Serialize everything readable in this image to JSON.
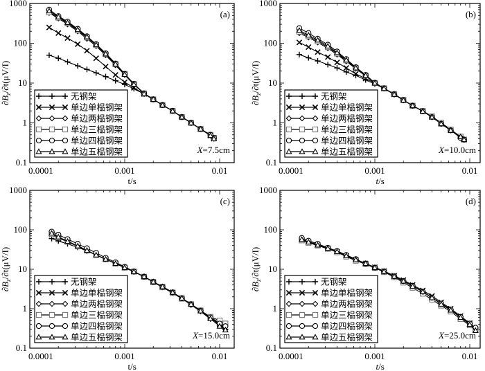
{
  "chart_data": {
    "type": "line",
    "scale": {
      "x": "log",
      "y": "log"
    },
    "xlabel": "t/s",
    "ylabel": "∂Bz/∂t(μV/I)",
    "ylabel_parts": {
      "pre": "∂B",
      "sub": "z",
      "post": "/∂t(μV/I)"
    },
    "xlabel_parts": {
      "var": "t",
      "unit": "/s"
    },
    "xticks": [
      "0.0001",
      "0.001",
      "0.01"
    ],
    "xtick_values": [
      0.0001,
      0.001,
      0.01
    ],
    "yticks": [
      "0.1",
      "1",
      "10",
      "100",
      "1000"
    ],
    "ytick_values": [
      0.1,
      1,
      10,
      100,
      1000
    ],
    "ylim": [
      0.1,
      1000
    ],
    "legend": {
      "placement": "bottom-left",
      "entries": [
        "无钢架",
        "单边单榀钢架",
        "单边两榀钢架",
        "单边三榀钢架",
        "单边四榀钢架",
        "单边五榀钢架"
      ],
      "markers": [
        "plus",
        "cross",
        "diamond",
        "square",
        "circle",
        "triangle"
      ]
    },
    "panels": [
      {
        "label": "(a)",
        "annotation": {
          "var": "X",
          "value": "=7.5cm"
        },
        "xlim": [
          0.0001,
          0.0142
        ],
        "t": [
          0.00016,
          0.0002,
          0.00025,
          0.00032,
          0.0004,
          0.0005,
          0.00063,
          0.0008,
          0.001,
          0.00125,
          0.0016,
          0.002,
          0.0025,
          0.0032,
          0.004,
          0.005,
          0.0063,
          0.008,
          0.0087
        ],
        "series": [
          {
            "name": "无钢架",
            "values": [
              50,
              42,
              34,
              27,
              22,
              18,
              14.5,
              11.5,
              9.2,
              7.2,
              5.3,
              3.9,
              2.8,
              2.0,
              1.4,
              1.0,
              0.7,
              0.48,
              0.4
            ]
          },
          {
            "name": "单边单榀钢架",
            "values": [
              250,
              180,
              135,
              95,
              65,
              42,
              26,
              16,
              10.5,
              7.6,
              5.3,
              3.9,
              2.8,
              2.0,
              1.4,
              1.0,
              0.7,
              0.48,
              0.4
            ]
          },
          {
            "name": "单边两榀钢架",
            "values": [
              580,
              420,
              300,
              200,
              130,
              85,
              50,
              28,
              16,
              9.2,
              5.4,
              3.9,
              2.8,
              2.0,
              1.4,
              1.0,
              0.7,
              0.5,
              0.42
            ]
          },
          {
            "name": "单边三榀钢架",
            "values": [
              600,
              440,
              320,
              210,
              140,
              90,
              53,
              30,
              17,
              9.5,
              5.5,
              3.9,
              2.8,
              2.0,
              1.4,
              1.0,
              0.7,
              0.5,
              0.42
            ]
          },
          {
            "name": "单边四榀钢架",
            "values": [
              700,
              480,
              350,
              230,
              150,
              95,
              56,
              31,
              17,
              9.5,
              5.5,
              3.9,
              2.8,
              2.0,
              1.4,
              1.0,
              0.7,
              0.5,
              0.42
            ]
          },
          {
            "name": "单边五榀钢架",
            "values": [
              650,
              460,
              330,
              220,
              145,
              92,
              54,
              30,
              16.5,
              9.3,
              5.4,
              3.9,
              2.8,
              2.0,
              1.4,
              1.0,
              0.7,
              0.48,
              0.4
            ]
          }
        ]
      },
      {
        "label": "(b)",
        "annotation": {
          "var": "X",
          "value": "=10.0cm"
        },
        "xlim": [
          0.0001,
          0.0126
        ],
        "t": [
          0.00016,
          0.0002,
          0.00025,
          0.00032,
          0.0004,
          0.0005,
          0.00063,
          0.0008,
          0.001,
          0.00125,
          0.0016,
          0.002,
          0.0025,
          0.0032,
          0.004,
          0.005,
          0.0063,
          0.008,
          0.0087
        ],
        "series": [
          {
            "name": "无钢架",
            "values": [
              52,
              43,
              36,
              29,
              24,
              19,
              15.5,
              12,
              9.5,
              7.3,
              5.2,
              3.7,
              2.7,
              1.95,
              1.4,
              0.95,
              0.65,
              0.45,
              0.38
            ]
          },
          {
            "name": "单边单榀钢架",
            "values": [
              105,
              80,
              60,
              45,
              33,
              24,
              17,
              13,
              10,
              7.3,
              5.2,
              3.7,
              2.7,
              1.95,
              1.4,
              0.95,
              0.65,
              0.45,
              0.38
            ]
          },
          {
            "name": "单边两榀钢架",
            "values": [
              180,
              140,
              105,
              75,
              52,
              35,
              23,
              15,
              10,
              7.3,
              5.2,
              3.7,
              2.7,
              1.95,
              1.4,
              0.95,
              0.65,
              0.45,
              0.38
            ]
          },
          {
            "name": "单边三榀钢架",
            "values": [
              195,
              150,
              112,
              80,
              55,
              37,
              24,
              15.5,
              10,
              7.4,
              5.3,
              3.8,
              2.7,
              2.0,
              1.45,
              1.0,
              0.68,
              0.45,
              0.38
            ]
          },
          {
            "name": "单边四榀钢架",
            "values": [
              240,
              180,
              130,
              92,
              62,
              40,
              25,
              16,
              10.2,
              7.4,
              5.2,
              3.7,
              2.7,
              1.95,
              1.4,
              0.95,
              0.65,
              0.42,
              0.38
            ]
          },
          {
            "name": "单边五榀钢架",
            "values": [
              210,
              160,
              120,
              85,
              58,
              38,
              24,
              15.5,
              10,
              7.3,
              5.2,
              3.7,
              2.7,
              1.95,
              1.4,
              0.95,
              0.65,
              0.45,
              0.38
            ]
          }
        ]
      },
      {
        "label": "(c)",
        "annotation": {
          "var": "X",
          "value": "=15.0cm"
        },
        "xlim": [
          0.0001,
          0.0142
        ],
        "t": [
          0.00017,
          0.0002,
          0.00025,
          0.00032,
          0.0004,
          0.0005,
          0.00063,
          0.0008,
          0.001,
          0.00125,
          0.0016,
          0.002,
          0.0025,
          0.0032,
          0.004,
          0.005,
          0.0063,
          0.008,
          0.01,
          0.0115
        ],
        "series": [
          {
            "name": "无钢架",
            "values": [
              60,
              52,
              44,
              36,
              29,
              23,
              18,
              14,
              11,
              8.6,
              6.5,
              4.8,
              3.5,
              2.5,
              1.8,
              1.25,
              0.85,
              0.55,
              0.38,
              0.3
            ]
          },
          {
            "name": "单边单榀钢架",
            "values": [
              75,
              62,
              50,
              38,
              30,
              23,
              18,
              14,
              11,
              8.7,
              6.5,
              4.8,
              3.6,
              2.6,
              1.85,
              1.3,
              0.9,
              0.58,
              0.4,
              0.33
            ]
          },
          {
            "name": "单边两榀钢架",
            "values": [
              80,
              65,
              51,
              39,
              30,
              23,
              18,
              14,
              11,
              8.7,
              6.5,
              4.8,
              3.6,
              2.6,
              1.85,
              1.3,
              0.9,
              0.6,
              0.44,
              0.38
            ]
          },
          {
            "name": "单边三榀钢架",
            "values": [
              78,
              64,
              50,
              38,
              30,
              23,
              18,
              14,
              11,
              8.7,
              6.4,
              4.7,
              3.5,
              2.5,
              1.8,
              1.3,
              0.9,
              0.62,
              0.5,
              0.42
            ]
          },
          {
            "name": "单边四榀钢架",
            "values": [
              90,
              75,
              58,
              44,
              34,
              26,
              19.5,
              15,
              11.5,
              8.8,
              6.5,
              4.8,
              3.6,
              2.6,
              1.85,
              1.3,
              0.9,
              0.6,
              0.42,
              0.36
            ]
          },
          {
            "name": "单边五榀钢架",
            "values": [
              82,
              66,
              51,
              39,
              30,
              23,
              18,
              14,
              11,
              8.7,
              6.5,
              4.8,
              3.6,
              2.6,
              1.85,
              1.3,
              0.88,
              0.56,
              0.36,
              0.29
            ]
          }
        ]
      },
      {
        "label": "(d)",
        "annotation": {
          "var": "X",
          "value": "=25.0cm"
        },
        "xlim": [
          0.0001,
          0.0126
        ],
        "t": [
          0.00017,
          0.0002,
          0.00025,
          0.00032,
          0.0004,
          0.0005,
          0.00063,
          0.0008,
          0.001,
          0.00125,
          0.0016,
          0.002,
          0.0025,
          0.0032,
          0.004,
          0.005,
          0.0063,
          0.008,
          0.01,
          0.0115
        ],
        "series": [
          {
            "name": "无钢架",
            "values": [
              55,
              48,
              41,
              34,
              28,
              22,
              17.5,
              14,
              11,
              8.8,
              6.6,
              5,
              3.8,
              2.7,
              1.9,
              1.35,
              0.95,
              0.62,
              0.42,
              0.32
            ]
          },
          {
            "name": "单边单榀钢架",
            "values": [
              56,
              49,
              42,
              34,
              28,
              22,
              17.5,
              14,
              11.2,
              9,
              6.9,
              5.3,
              4,
              2.9,
              2.1,
              1.45,
              1.0,
              0.65,
              0.43,
              0.3
            ]
          },
          {
            "name": "单边两榀钢架",
            "values": [
              58,
              50,
              42,
              34,
              28,
              22,
              17.5,
              14,
              11,
              8.8,
              6.6,
              5,
              3.8,
              2.7,
              1.9,
              1.35,
              0.95,
              0.62,
              0.42,
              0.32
            ]
          },
          {
            "name": "单边三榀钢架",
            "values": [
              54,
              47,
              40,
              33,
              27,
              21,
              16.5,
              13.5,
              10.8,
              8.5,
              6.3,
              4.6,
              3.4,
              2.4,
              1.7,
              1.2,
              0.85,
              0.55,
              0.38,
              0.3
            ]
          },
          {
            "name": "单边四榀钢架",
            "values": [
              62,
              53,
              44,
              35,
              29,
              23,
              18,
              14,
              11,
              8.8,
              6.6,
              5,
              3.8,
              2.7,
              1.9,
              1.35,
              0.95,
              0.62,
              0.42,
              0.33
            ]
          },
          {
            "name": "单边五榀钢架",
            "values": [
              57,
              49,
              41,
              34,
              28,
              22,
              17.5,
              14,
              11,
              8.8,
              6.6,
              5,
              3.7,
              2.7,
              1.9,
              1.3,
              0.92,
              0.6,
              0.4,
              0.28
            ]
          }
        ]
      }
    ]
  }
}
